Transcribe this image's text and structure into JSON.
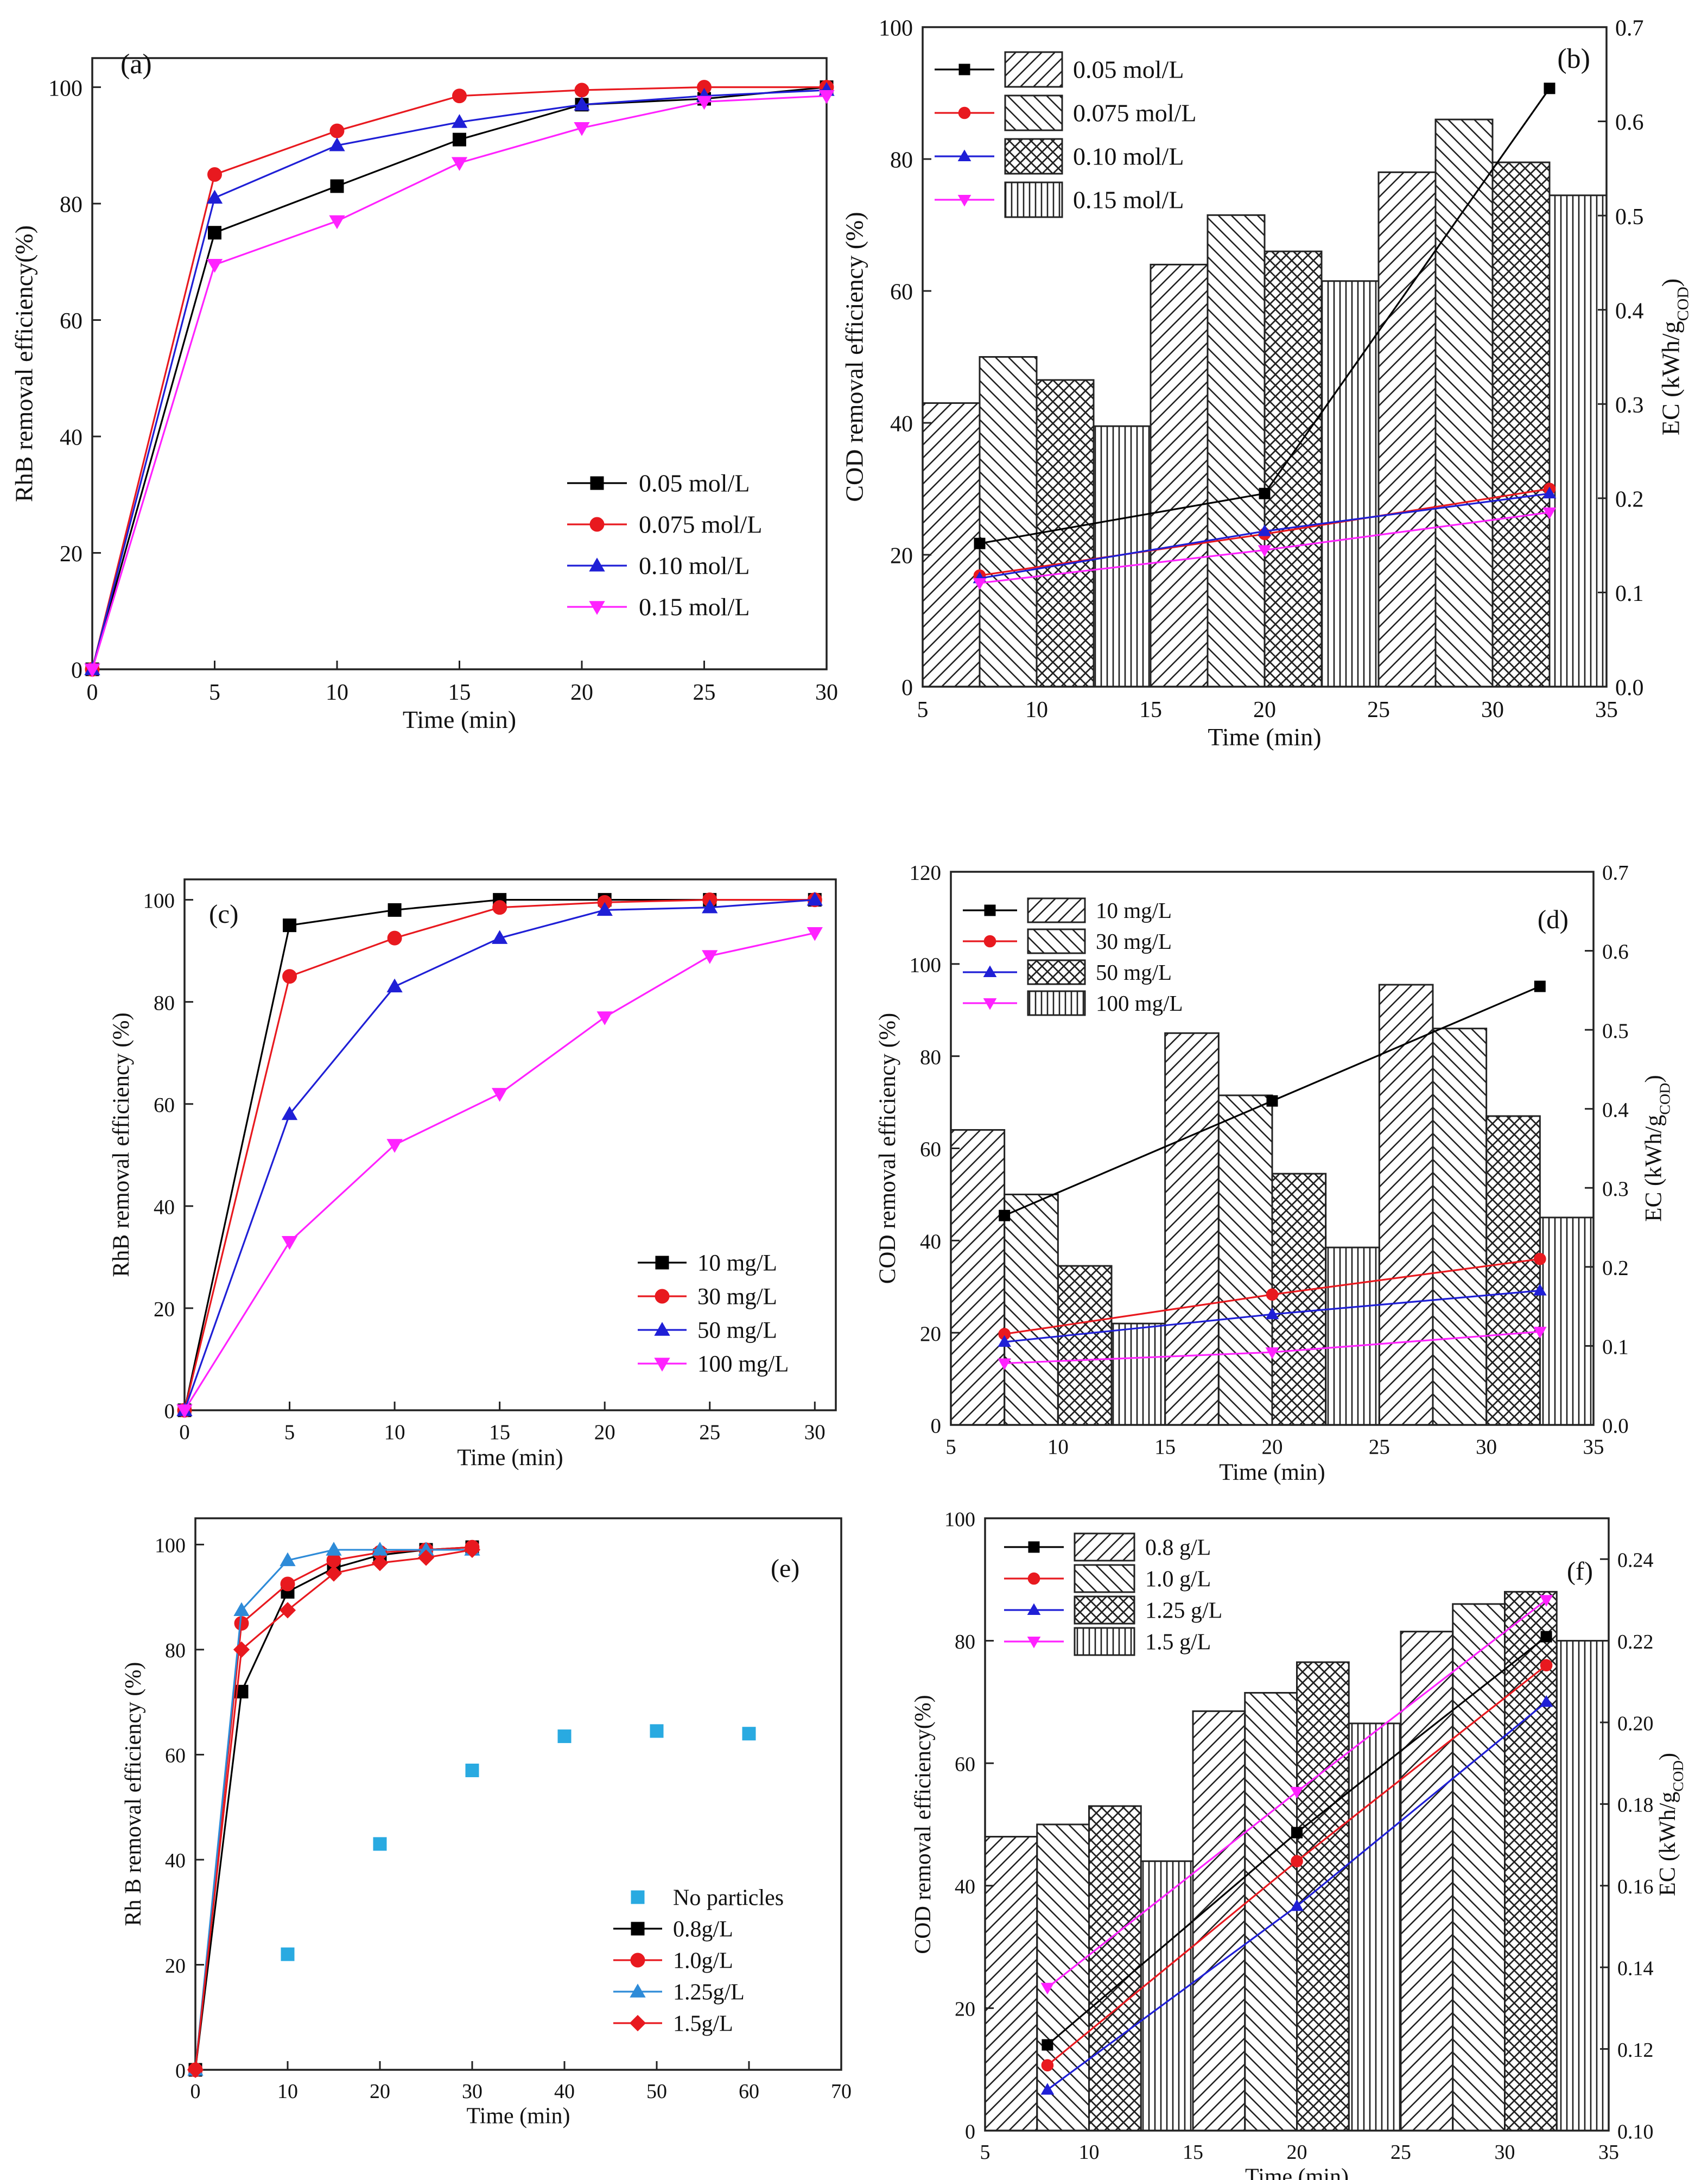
{
  "figure": "Six-panel figure (a)-(f): RhB and COD removal efficiency and energy consumption",
  "chart_data": [
    {
      "panel": "(a)",
      "type": "line",
      "xlabel": "Time (min)",
      "ylabel": "RhB removal efficiency(%)",
      "xlim": [
        0,
        30
      ],
      "ylim": [
        0,
        105
      ],
      "xticks": [
        0,
        5,
        10,
        15,
        20,
        25,
        30
      ],
      "yticks": [
        0,
        20,
        40,
        60,
        80,
        100
      ],
      "legend_position": "bottom-right",
      "series": [
        {
          "name": "0.05 mol/L",
          "color": "#000000",
          "marker": "square",
          "x": [
            0,
            5,
            10,
            15,
            20,
            25,
            30
          ],
          "y": [
            0,
            75,
            83,
            91,
            97,
            98,
            100
          ]
        },
        {
          "name": "0.075 mol/L",
          "color": "#e8191f",
          "marker": "circle",
          "x": [
            0,
            5,
            10,
            15,
            20,
            25,
            30
          ],
          "y": [
            0,
            85,
            92.5,
            98.5,
            99.5,
            100,
            100
          ]
        },
        {
          "name": "0.10 mol/L",
          "color": "#1f1fd6",
          "marker": "triangle-up",
          "x": [
            0,
            5,
            10,
            15,
            20,
            25,
            30
          ],
          "y": [
            0,
            81,
            90,
            94,
            97,
            98.5,
            99.5
          ]
        },
        {
          "name": "0.15 mol/L",
          "color": "#ff22ff",
          "marker": "triangle-down",
          "x": [
            0,
            5,
            10,
            15,
            20,
            25,
            30
          ],
          "y": [
            0,
            69.5,
            77,
            87,
            93,
            97.5,
            98.5
          ]
        }
      ]
    },
    {
      "panel": "(b)",
      "type": "bar",
      "xlabel": "Time (min)",
      "ylabel": "COD removal efficiency (%)",
      "y2label": "EC (kWh/g_COD)",
      "xlim": [
        5,
        35
      ],
      "ylim": [
        0,
        100
      ],
      "y2lim": [
        0,
        0.7
      ],
      "xticks": [
        5,
        10,
        15,
        20,
        25,
        30,
        35
      ],
      "yticks": [
        0,
        20,
        40,
        60,
        80,
        100
      ],
      "y2ticks": [
        "0.0",
        "0.1",
        "0.2",
        "0.3",
        "0.4",
        "0.5",
        "0.6",
        "0.7"
      ],
      "legend_position": "top-left",
      "bar_groups": [
        {
          "center": 10,
          "width": 2.5
        },
        {
          "center": 20,
          "width": 2.5
        },
        {
          "center": 30,
          "width": 2.5
        }
      ],
      "series": [
        {
          "name": "0.05 mol/L",
          "color": "#000000",
          "marker": "square",
          "pattern": "diag-fwd",
          "bars": [
            43,
            64,
            78
          ],
          "ec_x": [
            7.5,
            20,
            32.5
          ],
          "ec": [
            0.152,
            0.205,
            0.635
          ]
        },
        {
          "name": "0.075 mol/L",
          "color": "#e8191f",
          "marker": "circle",
          "pattern": "diag-back",
          "bars": [
            50,
            71.5,
            86
          ],
          "ec_x": [
            7.5,
            20,
            32.5
          ],
          "ec": [
            0.118,
            0.162,
            0.21
          ]
        },
        {
          "name": "0.10 mol/L",
          "color": "#1f1fd6",
          "marker": "triangle-up",
          "pattern": "cross",
          "bars": [
            46.5,
            66,
            79.5
          ],
          "ec_x": [
            7.5,
            20,
            32.5
          ],
          "ec": [
            0.115,
            0.165,
            0.205
          ]
        },
        {
          "name": "0.15 mol/L",
          "color": "#ff22ff",
          "marker": "triangle-down",
          "pattern": "vertical",
          "bars": [
            39.5,
            61.5,
            74.5
          ],
          "ec_x": [
            7.5,
            20,
            32.5
          ],
          "ec": [
            0.11,
            0.145,
            0.185
          ]
        }
      ]
    },
    {
      "panel": "(c)",
      "type": "line",
      "xlabel": "Time (min)",
      "ylabel": "RhB removal efficiency (%)",
      "xlim": [
        0,
        31
      ],
      "ylim": [
        0,
        104
      ],
      "xticks": [
        0,
        5,
        10,
        15,
        20,
        25,
        30
      ],
      "yticks": [
        0,
        20,
        40,
        60,
        80,
        100
      ],
      "legend_position": "bottom-right",
      "series": [
        {
          "name": "10 mg/L",
          "color": "#000000",
          "marker": "square",
          "x": [
            0,
            5,
            10,
            15,
            20,
            25,
            30
          ],
          "y": [
            0,
            95,
            98,
            100,
            100,
            100,
            100
          ]
        },
        {
          "name": "30 mg/L",
          "color": "#e8191f",
          "marker": "circle",
          "x": [
            0,
            5,
            10,
            15,
            20,
            25,
            30
          ],
          "y": [
            0,
            85,
            92.5,
            98.5,
            99.5,
            100,
            100
          ]
        },
        {
          "name": "50 mg/L",
          "color": "#1f1fd6",
          "marker": "triangle-up",
          "x": [
            0,
            5,
            10,
            15,
            20,
            25,
            30
          ],
          "y": [
            0,
            58,
            83,
            92.5,
            98,
            98.5,
            100
          ]
        },
        {
          "name": "100 mg/L",
          "color": "#ff22ff",
          "marker": "triangle-down",
          "x": [
            0,
            5,
            10,
            15,
            20,
            25,
            30
          ],
          "y": [
            0,
            33,
            52,
            62,
            77,
            89,
            93.5
          ]
        }
      ]
    },
    {
      "panel": "(d)",
      "type": "bar",
      "xlabel": "Time (min)",
      "ylabel": "COD removal efficiency (%)",
      "y2label": "EC (kWh/g_COD)",
      "xlim": [
        5,
        35
      ],
      "ylim": [
        0,
        120
      ],
      "y2lim": [
        0,
        0.7
      ],
      "xticks": [
        5,
        10,
        15,
        20,
        25,
        30,
        35
      ],
      "yticks": [
        0,
        20,
        40,
        60,
        80,
        100,
        120
      ],
      "y2ticks": [
        "0.0",
        "0.1",
        "0.2",
        "0.3",
        "0.4",
        "0.5",
        "0.6",
        "0.7"
      ],
      "legend_position": "top-left",
      "bar_groups": [
        {
          "center": 10,
          "width": 2.5
        },
        {
          "center": 20,
          "width": 2.5
        },
        {
          "center": 30,
          "width": 2.5
        }
      ],
      "series": [
        {
          "name": "10 mg/L",
          "color": "#000000",
          "marker": "square",
          "pattern": "diag-fwd",
          "bars": [
            64,
            85,
            95.5
          ],
          "ec_x": [
            7.5,
            20,
            32.5
          ],
          "ec": [
            0.265,
            0.41,
            0.555
          ]
        },
        {
          "name": "30 mg/L",
          "color": "#e8191f",
          "marker": "circle",
          "pattern": "diag-back",
          "bars": [
            50,
            71.5,
            86
          ],
          "ec_x": [
            7.5,
            20,
            32.5
          ],
          "ec": [
            0.115,
            0.165,
            0.21
          ]
        },
        {
          "name": "50 mg/L",
          "color": "#1f1fd6",
          "marker": "triangle-up",
          "pattern": "cross",
          "bars": [
            34.5,
            54.5,
            67
          ],
          "ec_x": [
            7.5,
            20,
            32.5
          ],
          "ec": [
            0.105,
            0.14,
            0.17
          ]
        },
        {
          "name": "100 mg/L",
          "color": "#ff22ff",
          "marker": "triangle-down",
          "pattern": "vertical",
          "bars": [
            22,
            38.5,
            45
          ],
          "ec_x": [
            7.5,
            20,
            32.5
          ],
          "ec": [
            0.078,
            0.092,
            0.118
          ]
        }
      ]
    },
    {
      "panel": "(e)",
      "type": "line",
      "xlabel": "Time (min)",
      "ylabel": "Rh B removal efficiency (%)",
      "xlim": [
        0,
        70
      ],
      "ylim": [
        0,
        105
      ],
      "xticks": [
        0,
        10,
        20,
        30,
        40,
        50,
        60,
        70
      ],
      "yticks": [
        0,
        20,
        40,
        60,
        80,
        100
      ],
      "legend_position": "bottom-right",
      "series": [
        {
          "name": "No particles",
          "color": "#29aae1",
          "marker": "square",
          "style": "markers-only",
          "x": [
            0,
            10,
            20,
            30,
            40,
            50,
            60
          ],
          "y": [
            0,
            22,
            43,
            57,
            63.5,
            64.5,
            64
          ]
        },
        {
          "name": "0.8g/L",
          "color": "#000000",
          "marker": "square",
          "x": [
            0,
            5,
            10,
            15,
            20,
            25,
            30
          ],
          "y": [
            0,
            72,
            91,
            95.5,
            98,
            99,
            99.5
          ]
        },
        {
          "name": "1.0g/L",
          "color": "#e8191f",
          "marker": "circle",
          "x": [
            0,
            5,
            10,
            15,
            20,
            25,
            30
          ],
          "y": [
            0,
            85,
            92.5,
            97,
            98.5,
            99,
            99.5
          ]
        },
        {
          "name": "1.25g/L",
          "color": "#2e8bd8",
          "marker": "triangle-up",
          "x": [
            0,
            5,
            10,
            15,
            20,
            25,
            30
          ],
          "y": [
            0,
            87.5,
            97,
            99,
            99,
            99,
            99
          ]
        },
        {
          "name": "1.5g/L",
          "color": "#e8191f",
          "marker": "diamond",
          "x": [
            0,
            5,
            10,
            15,
            20,
            25,
            30
          ],
          "y": [
            0,
            80,
            87.5,
            94.5,
            96.5,
            97.5,
            99
          ]
        }
      ]
    },
    {
      "panel": "(f)",
      "type": "bar",
      "xlabel": "Time (min)",
      "ylabel": "COD removal efficiency(%)",
      "y2label": "EC (kWh/g_COD)",
      "xlim": [
        5,
        35
      ],
      "ylim": [
        0,
        100
      ],
      "y2lim": [
        0.1,
        0.25
      ],
      "xticks": [
        5,
        10,
        15,
        20,
        25,
        30,
        35
      ],
      "yticks": [
        0,
        20,
        40,
        60,
        80,
        100
      ],
      "y2ticks": [
        "0.10",
        "0.12",
        "0.14",
        "0.16",
        "0.18",
        "0.20",
        "0.22",
        "0.24"
      ],
      "legend_position": "top-left",
      "bar_groups": [
        {
          "center": 10,
          "width": 2.5
        },
        {
          "center": 20,
          "width": 2.5
        },
        {
          "center": 30,
          "width": 2.5
        }
      ],
      "series": [
        {
          "name": "0.8 g/L",
          "color": "#000000",
          "marker": "square",
          "pattern": "diag-fwd",
          "bars": [
            48,
            68.5,
            81.5
          ],
          "ec_x": [
            8,
            20,
            32
          ],
          "ec": [
            0.121,
            0.173,
            0.221
          ]
        },
        {
          "name": "1.0 g/L",
          "color": "#e8191f",
          "marker": "circle",
          "pattern": "diag-back",
          "bars": [
            50,
            71.5,
            86
          ],
          "ec_x": [
            8,
            20,
            32
          ],
          "ec": [
            0.116,
            0.166,
            0.214
          ]
        },
        {
          "name": "1.25 g/L",
          "color": "#1f1fd6",
          "marker": "triangle-up",
          "pattern": "cross",
          "bars": [
            53,
            76.5,
            88
          ],
          "ec_x": [
            8,
            20,
            32
          ],
          "ec": [
            0.11,
            0.155,
            0.205
          ]
        },
        {
          "name": "1.5 g/L",
          "color": "#ff22ff",
          "marker": "triangle-down",
          "pattern": "vertical",
          "bars": [
            44,
            66.5,
            80
          ],
          "ec_x": [
            8,
            20,
            32
          ],
          "ec": [
            0.135,
            0.183,
            0.23
          ]
        }
      ]
    }
  ]
}
